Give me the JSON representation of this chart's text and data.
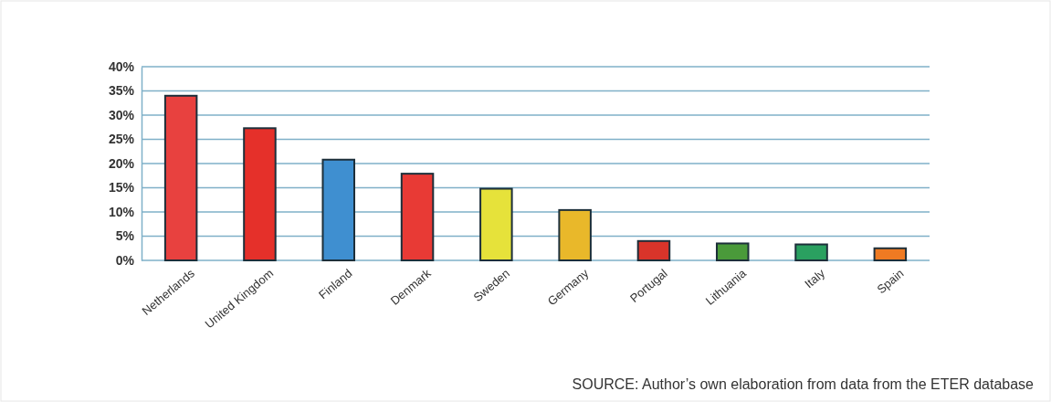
{
  "chart_data": {
    "type": "bar",
    "categories": [
      "Netherlands",
      "United Kingdom",
      "Finland",
      "Denmark",
      "Sweden",
      "Germany",
      "Portugal",
      "Lithuania",
      "Italy",
      "Spain"
    ],
    "values": [
      34.0,
      27.3,
      20.8,
      17.9,
      14.8,
      10.4,
      4.0,
      3.5,
      3.3,
      2.5
    ],
    "colors": [
      "#e8413f",
      "#e5302a",
      "#3f8fd0",
      "#e83a35",
      "#e6e23a",
      "#e9b82a",
      "#d9342a",
      "#4a9a3a",
      "#2aa060",
      "#ef7a22"
    ],
    "ylim": [
      0,
      40
    ],
    "yticks": [
      {
        "value": 0,
        "label": "0%"
      },
      {
        "value": 5,
        "label": "5%"
      },
      {
        "value": 10,
        "label": "10%"
      },
      {
        "value": 15,
        "label": "15%"
      },
      {
        "value": 20,
        "label": "20%"
      },
      {
        "value": 25,
        "label": "25%"
      },
      {
        "value": 30,
        "label": "30%"
      },
      {
        "value": 35,
        "label": "35%"
      },
      {
        "value": 40,
        "label": "40%"
      }
    ],
    "grid": "y",
    "annotations": [
      "SOURCE: Author’s own elaboration from data from the ETER database"
    ]
  }
}
